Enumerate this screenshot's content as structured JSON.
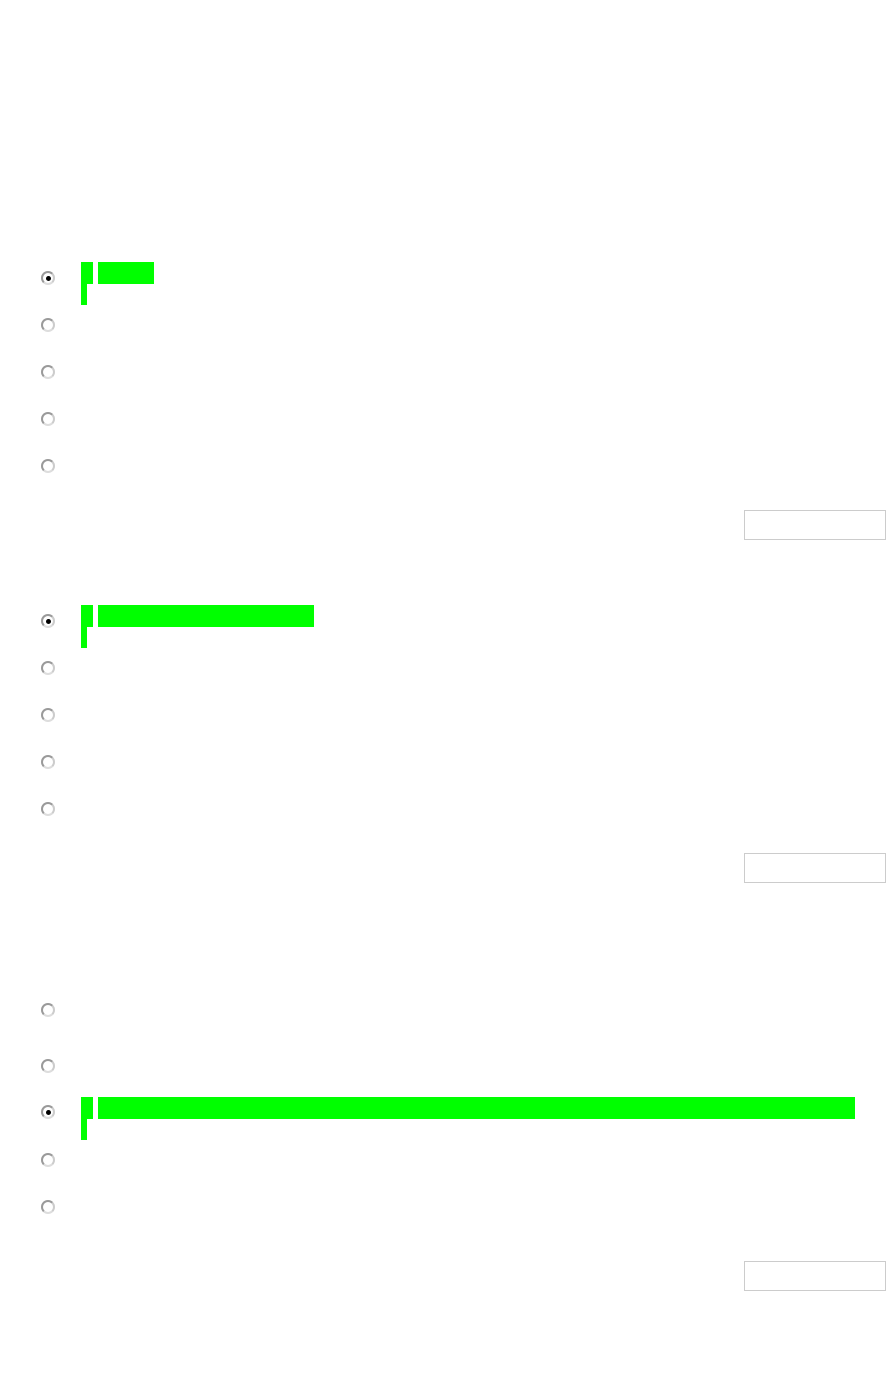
{
  "colors": {
    "highlight": "#00ff00",
    "button_border": "#cccccc"
  },
  "groups": [
    {
      "options": 5,
      "selected_index": 0
    },
    {
      "options": 5,
      "selected_index": 0
    },
    {
      "options": 5,
      "selected_index": 2
    }
  ]
}
